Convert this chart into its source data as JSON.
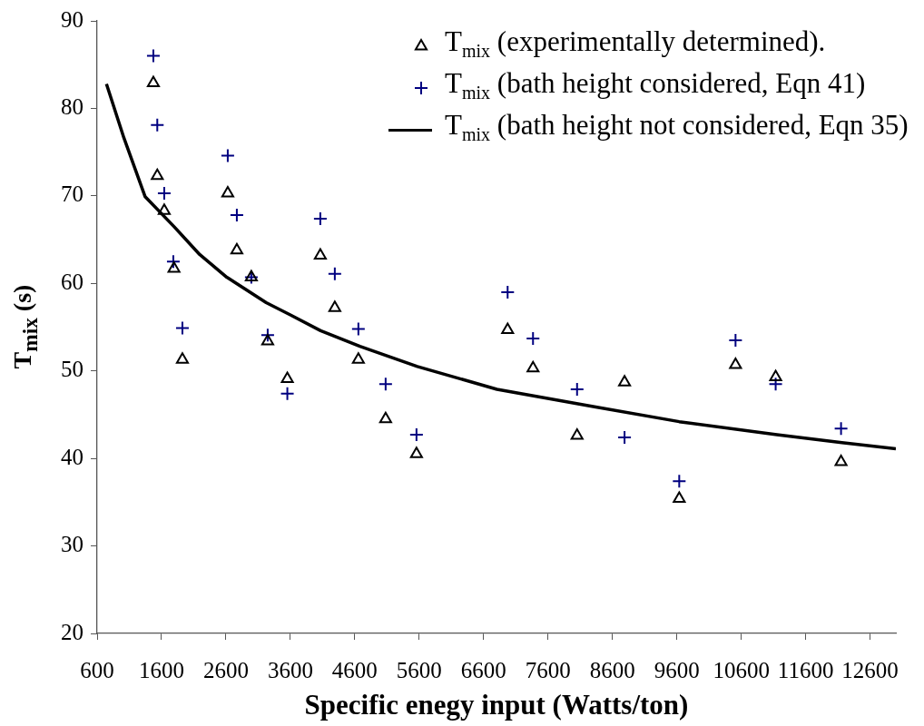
{
  "chart_data": {
    "type": "scatter",
    "xlabel": "Specific enegy input (Watts/ton)",
    "ylabel": "T$_{mix}$ (s)",
    "xlim": [
      600,
      13000
    ],
    "xticks": [
      600,
      1600,
      2600,
      3600,
      4600,
      5600,
      6600,
      7600,
      8600,
      9600,
      10600,
      11600,
      12600
    ],
    "ylim": [
      20,
      90
    ],
    "yticks": [
      20,
      30,
      40,
      50,
      60,
      70,
      80,
      90
    ],
    "grid": false,
    "legend": "top right",
    "series": [
      {
        "name": "T$_{mix}$ (experimentally determined).",
        "type": "scatter",
        "marker": "triangle",
        "color": "#000000",
        "x": [
          1473,
          1534,
          1642,
          1793,
          1924,
          2628,
          2769,
          2994,
          3248,
          3553,
          4065,
          4290,
          4656,
          5079,
          5558,
          6973,
          7367,
          8051,
          8788,
          9637,
          10511,
          11134,
          12149
        ],
        "values": [
          82.9,
          72.3,
          68.3,
          61.7,
          51.3,
          70.3,
          63.8,
          60.7,
          53.4,
          49.1,
          63.2,
          57.2,
          51.3,
          44.5,
          40.5,
          54.7,
          50.3,
          42.6,
          48.7,
          35.4,
          50.7,
          49.3,
          39.6
        ]
      },
      {
        "name": "T$_{mix}$ (bath height considered, Eqn 41)",
        "type": "scatter",
        "marker": "cross",
        "color": "#000080",
        "x": [
          1473,
          1534,
          1642,
          1783,
          1924,
          2628,
          2769,
          2994,
          3248,
          3553,
          4065,
          4290,
          4656,
          5079,
          5558,
          6973,
          7367,
          8051,
          8788,
          9637,
          10511,
          11134,
          12149
        ],
        "values": [
          86.0,
          78.1,
          70.3,
          62.5,
          54.9,
          74.6,
          67.8,
          60.7,
          54.1,
          47.4,
          67.4,
          61.1,
          54.8,
          48.5,
          42.7,
          59.0,
          53.7,
          47.9,
          42.4,
          37.4,
          53.5,
          48.5,
          43.4
        ]
      },
      {
        "name": "T$_{mix}$ (bath height not considered, Eqn 35)",
        "type": "line",
        "marker": "none",
        "line_style": "solid",
        "color": "#000000",
        "x": [
          745,
          1017,
          1346,
          1793,
          2192,
          2614,
          3225,
          3600,
          4069,
          4680,
          5572,
          6807,
          8322,
          9637,
          11154,
          12163,
          13000
        ],
        "values": [
          82.8,
          76.6,
          69.9,
          66.5,
          63.3,
          60.7,
          57.8,
          56.4,
          54.6,
          52.8,
          50.5,
          47.9,
          45.9,
          44.2,
          42.7,
          41.8,
          41.1
        ]
      }
    ]
  }
}
